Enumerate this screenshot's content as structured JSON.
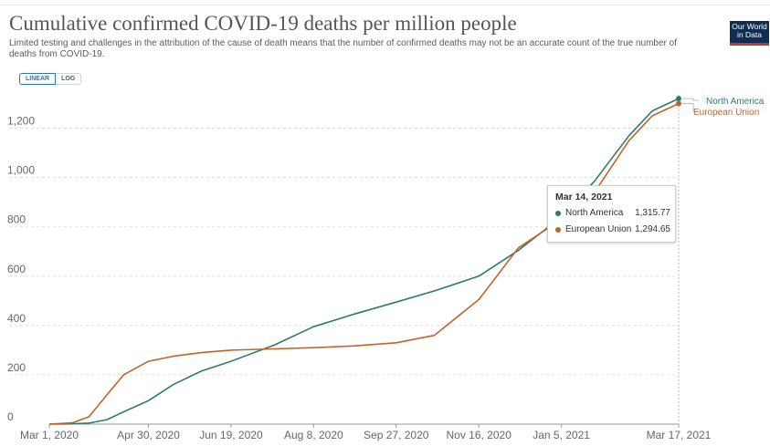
{
  "header": {
    "title": "Cumulative confirmed COVID-19 deaths per million people",
    "subtitle": "Limited testing and challenges in the attribution of the cause of death means that the number of confirmed deaths may not be an accurate count of the true number of deaths from COVID-19.",
    "logo_line1": "Our World",
    "logo_line2": "in Data"
  },
  "controls": {
    "linear_label": "LINEAR",
    "log_label": "LOG"
  },
  "tooltip": {
    "date": "Mar 14, 2021",
    "rows": [
      {
        "name": "North America",
        "value": "1,315.77"
      },
      {
        "name": "European Union",
        "value": "1,294.65"
      }
    ]
  },
  "colors": {
    "north_america": "#2d7b6e",
    "european_union": "#c0642a",
    "grid": "#dddddd",
    "axis": "#999999"
  },
  "chart_data": {
    "type": "line",
    "title": "Cumulative confirmed COVID-19 deaths per million people",
    "xlabel": "",
    "ylabel": "",
    "x_axis": "date",
    "xlim": [
      "2020-03-01",
      "2021-03-17"
    ],
    "ylim": [
      0,
      1350
    ],
    "x_ticks": [
      "Mar 1, 2020",
      "Apr 30, 2020",
      "Jun 19, 2020",
      "Aug 8, 2020",
      "Sep 27, 2020",
      "Nov 16, 2020",
      "Jan 5, 2021",
      "Mar 17, 2021"
    ],
    "y_ticks": [
      0,
      200,
      400,
      600,
      800,
      1000,
      1200
    ],
    "y_tick_labels": [
      "0",
      "200",
      "400",
      "600",
      "800",
      "1,000",
      "1,200"
    ],
    "grid": "horizontal dashed",
    "legend": "right end of lines",
    "x": [
      "2020-03-01",
      "2020-03-15",
      "2020-03-25",
      "2020-04-05",
      "2020-04-15",
      "2020-04-30",
      "2020-05-15",
      "2020-06-01",
      "2020-06-19",
      "2020-07-15",
      "2020-08-08",
      "2020-09-01",
      "2020-09-27",
      "2020-10-20",
      "2020-11-16",
      "2020-12-10",
      "2021-01-05",
      "2021-01-25",
      "2021-02-15",
      "2021-03-01",
      "2021-03-17"
    ],
    "series": [
      {
        "name": "North America",
        "values": [
          0,
          1,
          4,
          18,
          50,
          95,
          160,
          215,
          255,
          320,
          395,
          445,
          495,
          540,
          600,
          705,
          840,
          985,
          1170,
          1270,
          1320
        ]
      },
      {
        "name": "European Union",
        "values": [
          0,
          5,
          30,
          120,
          200,
          255,
          275,
          290,
          300,
          305,
          310,
          317,
          330,
          360,
          505,
          715,
          830,
          940,
          1150,
          1250,
          1300
        ]
      }
    ]
  }
}
